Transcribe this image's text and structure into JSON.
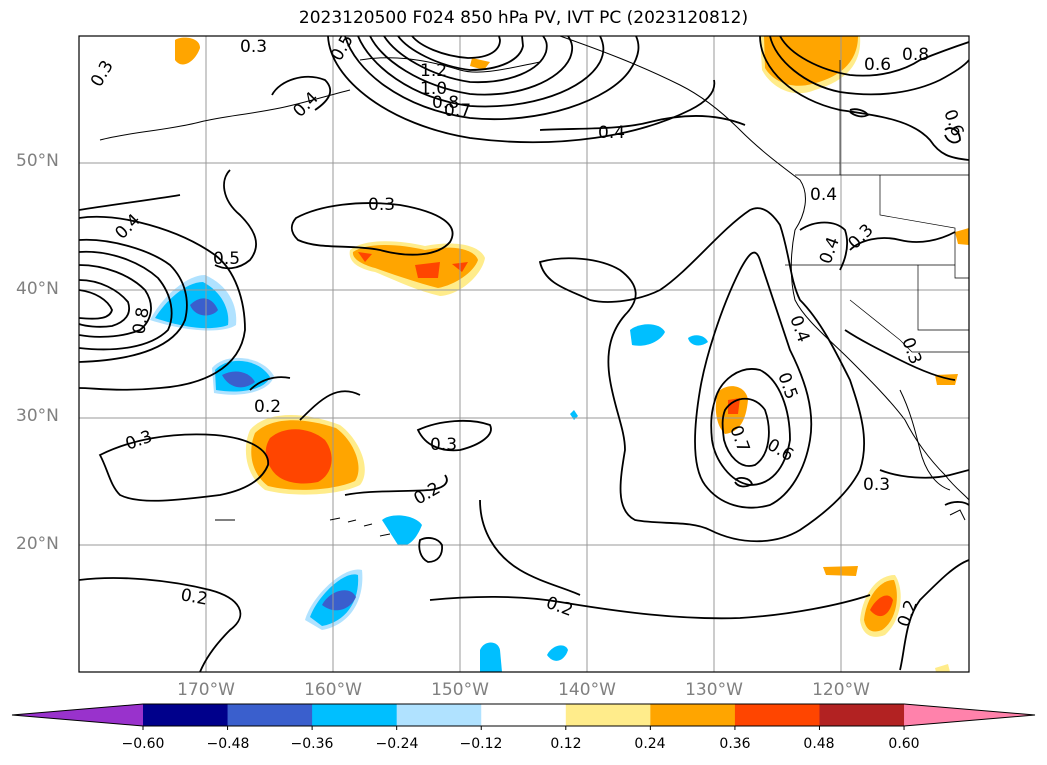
{
  "title": "2023120500 F024 850 hPa PV, IVT PC (2023120812)",
  "lat_labels": [
    "50°N",
    "40°N",
    "30°N",
    "20°N"
  ],
  "lon_labels": [
    "170°W",
    "160°W",
    "150°W",
    "140°W",
    "130°W",
    "120°W"
  ],
  "contour_labels": [
    "0.3",
    "1.2",
    "1.0",
    "0.8",
    "0.7",
    "0.6",
    "0.4",
    "0.8",
    "0.6",
    "0.5",
    "0.4",
    "0.3",
    "0.4",
    "0.3",
    "0.4",
    "0.5",
    "0.8",
    "0.2",
    "0.3",
    "0.2",
    "0.3",
    "0.4",
    "0.4",
    "0.7",
    "0.6",
    "0.5",
    "0.3",
    "0.2",
    "0.3",
    "0.2",
    "0.2",
    "0.3"
  ],
  "colorbar": {
    "ticks": [
      "−0.60",
      "−0.48",
      "−0.36",
      "−0.24",
      "−0.12",
      "0.12",
      "0.24",
      "0.36",
      "0.48",
      "0.60"
    ],
    "colors": [
      "#9932CC",
      "#00008B",
      "#3A5FCD",
      "#00BFFF",
      "#B0E2FF",
      "#FFFFFF",
      "#FFEC8B",
      "#FFA500",
      "#FF4500",
      "#B22222",
      "#FF82AB"
    ]
  },
  "shading_colors": {
    "blue_dark": "#3A5FCD",
    "blue": "#00BFFF",
    "blue_light": "#B0E2FF",
    "yellow": "#FFEC8B",
    "orange": "#FFA500",
    "red_orange": "#FF4500"
  }
}
